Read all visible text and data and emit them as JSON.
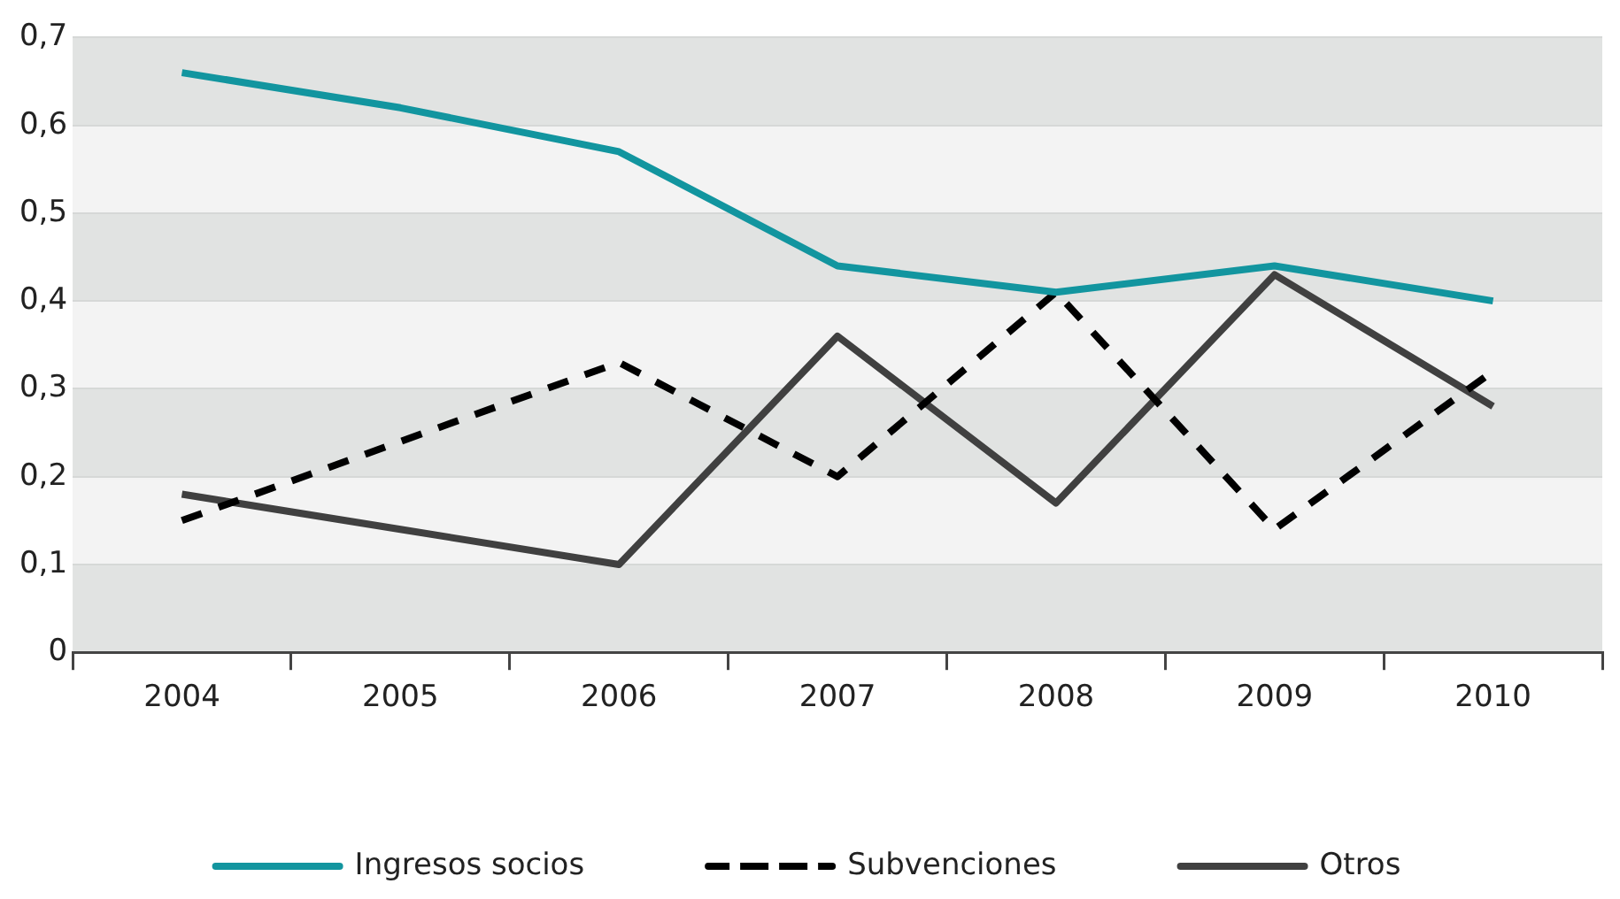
{
  "chart_data": {
    "type": "line",
    "categories": [
      "2004",
      "2005",
      "2006",
      "2007",
      "2008",
      "2009",
      "2010"
    ],
    "series": [
      {
        "name": "Ingresos socios",
        "color": "#12959f",
        "values": [
          0.66,
          0.62,
          0.57,
          0.44,
          0.41,
          0.44,
          0.4
        ]
      },
      {
        "name": "Subvenciones",
        "color": "#000000",
        "line_style": "dashed",
        "values": [
          0.15,
          0.24,
          0.33,
          0.2,
          0.41,
          0.14,
          0.32
        ]
      },
      {
        "name": "Otros",
        "color": "#404040",
        "values": [
          0.18,
          0.14,
          0.1,
          0.36,
          0.17,
          0.43,
          0.28
        ]
      }
    ],
    "ylim": [
      0,
      0.7
    ],
    "yticks": [
      0,
      {
        "value": 0.1,
        "label": "0,1"
      },
      {
        "value": 0.2,
        "label": "0,2"
      },
      {
        "value": 0.3,
        "label": "0,3"
      },
      {
        "value": 0.4,
        "label": "0,4"
      },
      {
        "value": 0.5,
        "label": "0,5"
      },
      {
        "value": 0.6,
        "label": "0,6"
      },
      {
        "value": 0.7,
        "label": "0,7"
      }
    ],
    "grid": "y",
    "legend": "bottom",
    "marker": "none",
    "line_style": "solid"
  }
}
